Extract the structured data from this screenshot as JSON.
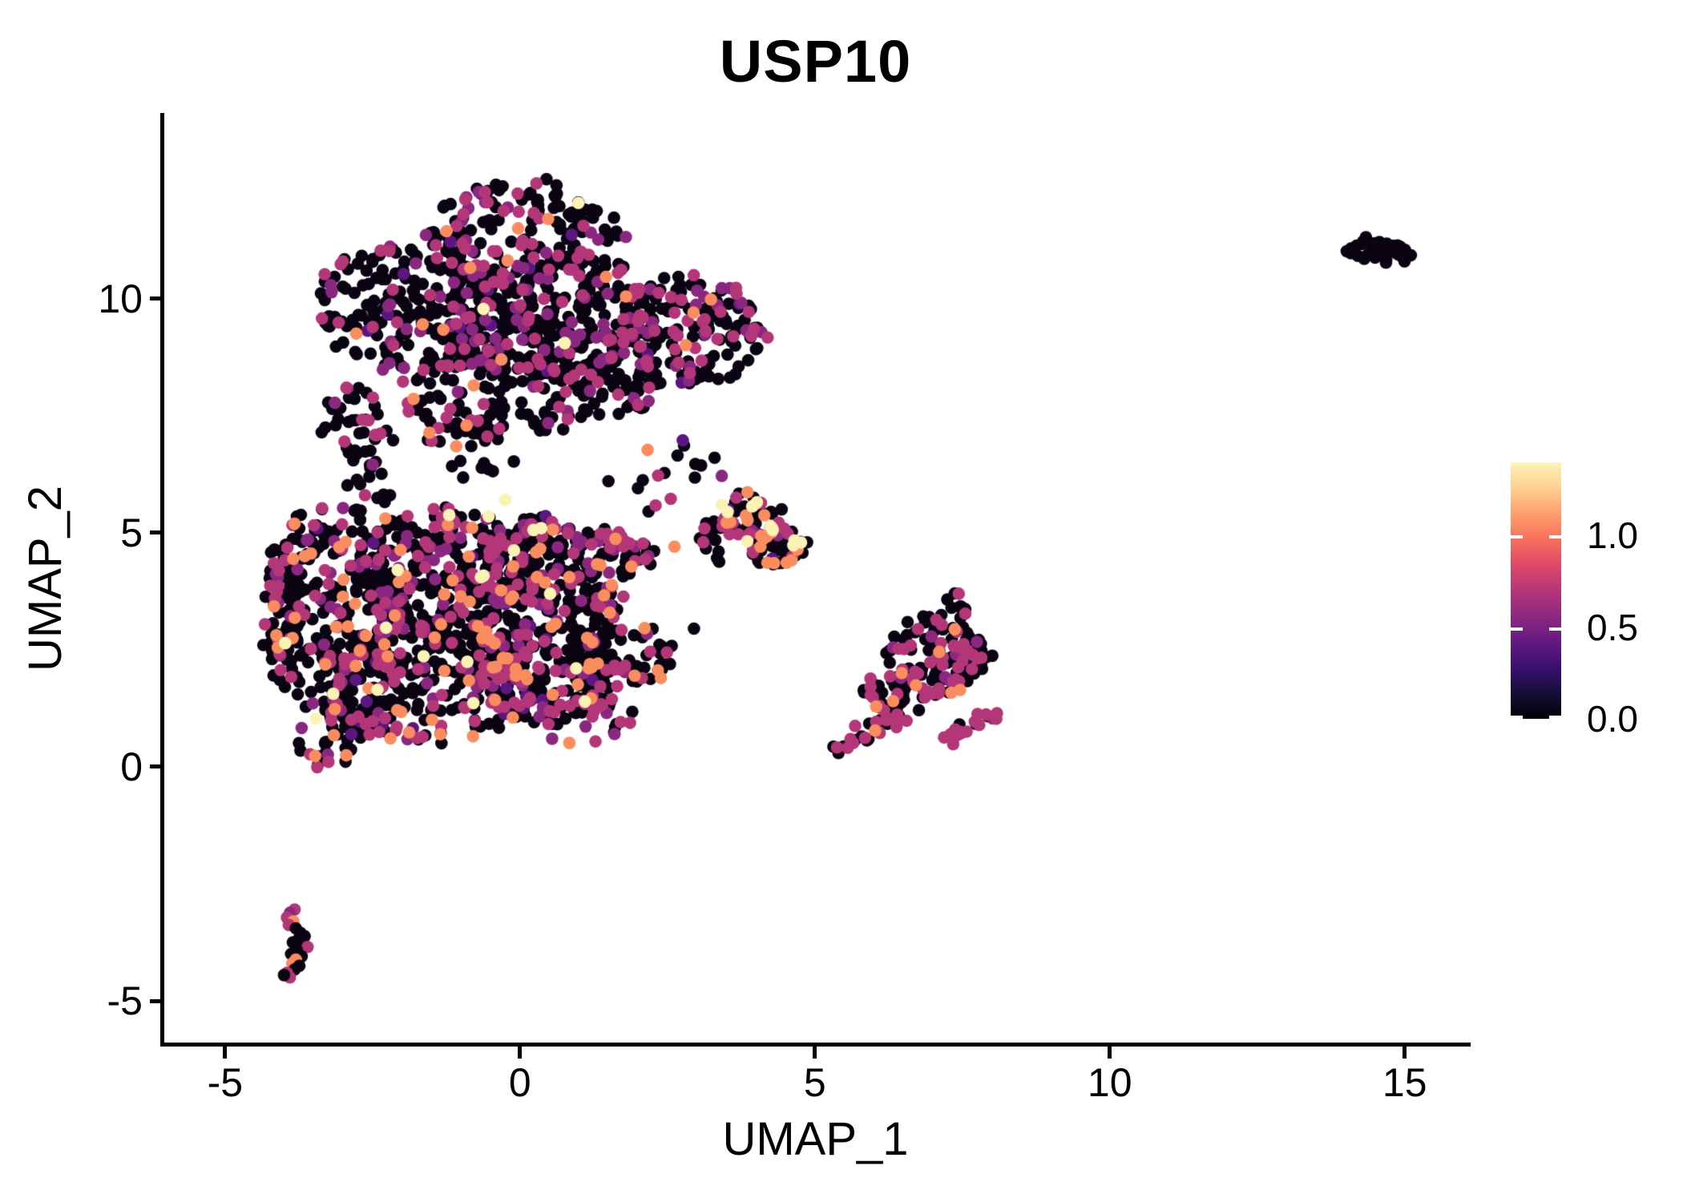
{
  "title": "USP10",
  "chart_data": {
    "type": "scatter",
    "title": "USP10",
    "xlabel": "UMAP_1",
    "ylabel": "UMAP_2",
    "xlim": [
      -6.03,
      16.05
    ],
    "ylim": [
      -5.89,
      13.93
    ],
    "grid": false,
    "point_radius_px": 7.8,
    "seed": 20,
    "axes": {
      "x": {
        "ticks": [
          {
            "value": -5,
            "label": "-5"
          },
          {
            "value": 0,
            "label": "0"
          },
          {
            "value": 5,
            "label": "5"
          },
          {
            "value": 10,
            "label": "10"
          },
          {
            "value": 15,
            "label": "15"
          }
        ]
      },
      "y": {
        "ticks": [
          {
            "value": 10,
            "label": "10"
          },
          {
            "value": 5,
            "label": "5"
          },
          {
            "value": 0,
            "label": "0"
          },
          {
            "value": -5,
            "label": "-5"
          }
        ]
      }
    },
    "legend": {
      "position": "right",
      "max": 1.4,
      "ticks": [
        {
          "value": 1.0,
          "label": "1.0"
        },
        {
          "value": 0.5,
          "label": "0.5"
        },
        {
          "value": 0.0,
          "label": "0.0"
        }
      ],
      "gradient": [
        {
          "pos": 0.0,
          "color": "#000004"
        },
        {
          "pos": 0.1,
          "color": "#140E36"
        },
        {
          "pos": 0.2,
          "color": "#3B0F70"
        },
        {
          "pos": 0.3,
          "color": "#641A80"
        },
        {
          "pos": 0.4,
          "color": "#8C2981"
        },
        {
          "pos": 0.5,
          "color": "#B63679"
        },
        {
          "pos": 0.6,
          "color": "#DE4968"
        },
        {
          "pos": 0.7,
          "color": "#F7705C"
        },
        {
          "pos": 0.8,
          "color": "#FE9F6D"
        },
        {
          "pos": 0.9,
          "color": "#FECF92"
        },
        {
          "pos": 1.0,
          "color": "#FCF4B6"
        }
      ]
    },
    "palette": {
      "black": "#0A0413",
      "purple": "#5C167F",
      "dmag": "#8A2880",
      "mag": "#B33778",
      "orange": "#F98D5F",
      "cream": "#FBF2B4"
    },
    "color_mixes": {
      "A": {
        "black": 0.72,
        "mag": 0.155,
        "dmag": 0.085,
        "purple": 0.015,
        "orange": 0.02,
        "cream": 0.005
      },
      "B": {
        "black": 0.655,
        "mag": 0.165,
        "dmag": 0.085,
        "purple": 0.02,
        "orange": 0.065,
        "cream": 0.01
      },
      "S1": {
        "black": 0.42,
        "mag": 0.33,
        "dmag": 0.1,
        "orange": 0.15
      },
      "C": {
        "black": 0.52,
        "mag": 0.13,
        "dmag": 0.06,
        "purple": 0.02,
        "orange": 0.2,
        "cream": 0.07
      },
      "C2": {
        "black": 0.6,
        "mag": 0.2,
        "dmag": 0.1,
        "orange": 0.1
      },
      "D": {
        "black": 0.66,
        "mag": 0.27,
        "dmag": 0.05,
        "orange": 0.02
      },
      "D2": {
        "black": 0.7,
        "mag": 0.3
      },
      "D3": {
        "black": 0.5,
        "mag": 0.38,
        "dmag": 0.03,
        "orange": 0.09
      },
      "D4": {
        "black": 0.2,
        "mag": 0.7,
        "dmag": 0.1
      },
      "F": {
        "black": 1.0
      }
    },
    "clusters": [
      {
        "id": "top-a1",
        "type": "ellipse",
        "cx": 0.1,
        "cy": 11.35,
        "rx": 1.7,
        "ry": 1.05,
        "rot": -8,
        "n": 150,
        "mix": "A"
      },
      {
        "id": "top-a2",
        "type": "ellipse",
        "cx": -1.7,
        "cy": 9.9,
        "rx": 1.75,
        "ry": 1.5,
        "rot": 10,
        "n": 230,
        "mix": "A"
      },
      {
        "id": "top-a3",
        "type": "ellipse",
        "cx": 0.6,
        "cy": 9.6,
        "rx": 1.9,
        "ry": 1.45,
        "rot": 0,
        "n": 300,
        "mix": "A"
      },
      {
        "id": "top-a4",
        "type": "ellipse",
        "cx": 2.9,
        "cy": 9.35,
        "rx": 1.25,
        "ry": 1.15,
        "rot": -20,
        "n": 170,
        "mix": "A"
      },
      {
        "id": "top-a5",
        "type": "ellipse",
        "cx": 0.2,
        "cy": 8.1,
        "rx": 2.3,
        "ry": 0.95,
        "rot": 3,
        "n": 180,
        "mix": "A"
      },
      {
        "id": "top-a6-bridge",
        "type": "ellipse",
        "cx": -2.7,
        "cy": 6.9,
        "rx": 0.55,
        "ry": 1.35,
        "rot": 12,
        "n": 55,
        "mix": "A"
      },
      {
        "id": "top-a7-spur",
        "type": "ellipse",
        "cx": -0.85,
        "cy": 6.8,
        "rx": 0.85,
        "ry": 0.6,
        "rot": 0,
        "n": 28,
        "mix": "A"
      },
      {
        "id": "top-a8-sparse",
        "type": "ellipse",
        "cx": 2.5,
        "cy": 6.3,
        "rx": 1.0,
        "ry": 0.78,
        "rot": 0,
        "n": 13,
        "mix": "A"
      },
      {
        "id": "mid-b1",
        "type": "ellipse",
        "cx": -3.1,
        "cy": 3.3,
        "rx": 1.15,
        "ry": 2.5,
        "rot": 5,
        "n": 270,
        "mix": "B"
      },
      {
        "id": "mid-b2",
        "type": "ellipse",
        "cx": -1.3,
        "cy": 4.0,
        "rx": 1.6,
        "ry": 1.6,
        "rot": 0,
        "n": 320,
        "mix": "B"
      },
      {
        "id": "mid-b3",
        "type": "ellipse",
        "cx": 0.5,
        "cy": 4.0,
        "rx": 1.4,
        "ry": 1.2,
        "rot": -10,
        "n": 230,
        "mix": "B"
      },
      {
        "id": "mid-b4",
        "type": "ellipse",
        "cx": -1.4,
        "cy": 1.8,
        "rx": 1.8,
        "ry": 1.25,
        "rot": 8,
        "n": 260,
        "mix": "B"
      },
      {
        "id": "mid-b5",
        "type": "ellipse",
        "cx": 0.5,
        "cy": 2.0,
        "rx": 1.3,
        "ry": 1.05,
        "rot": 0,
        "n": 190,
        "mix": "B"
      },
      {
        "id": "mid-b6-wedge",
        "type": "ellipse",
        "cx": 1.8,
        "cy": 2.45,
        "rx": 0.85,
        "ry": 0.6,
        "rot": -25,
        "n": 55,
        "mix": "B"
      },
      {
        "id": "mid-b7-tip",
        "type": "ellipse",
        "cx": -3.2,
        "cy": 0.6,
        "rx": 0.6,
        "ry": 0.65,
        "rot": 0,
        "n": 40,
        "mix": "B"
      },
      {
        "id": "mid-b8-edge",
        "type": "ellipse",
        "cx": -4.0,
        "cy": 3.1,
        "rx": 0.3,
        "ry": 1.5,
        "rot": 0,
        "n": 45,
        "mix": "B"
      },
      {
        "id": "mid-b9-streak",
        "type": "streak",
        "x1": 1.35,
        "y1": 4.95,
        "x2": 2.15,
        "y2": 4.42,
        "spread": 0.12,
        "n": 30,
        "mix": "S1"
      },
      {
        "id": "mid-b10",
        "type": "ellipse",
        "cx": 1.15,
        "cy": 0.95,
        "rx": 0.75,
        "ry": 0.5,
        "rot": 10,
        "n": 26,
        "mix": "B"
      },
      {
        "id": "mid-b11",
        "type": "ellipse",
        "cx": 0.35,
        "cy": 5.0,
        "rx": 0.5,
        "ry": 0.35,
        "rot": 0,
        "n": 30,
        "mix": "B"
      },
      {
        "id": "small-c1",
        "type": "ellipse",
        "cx": 3.9,
        "cy": 5.35,
        "rx": 0.5,
        "ry": 0.5,
        "rot": 0,
        "n": 48,
        "mix": "C"
      },
      {
        "id": "small-c2",
        "type": "ellipse",
        "cx": 4.35,
        "cy": 4.7,
        "rx": 0.55,
        "ry": 0.42,
        "rot": -15,
        "n": 52,
        "mix": "C"
      },
      {
        "id": "small-c3-arm",
        "type": "ellipse",
        "cx": 3.3,
        "cy": 4.9,
        "rx": 0.35,
        "ry": 0.5,
        "rot": 15,
        "n": 16,
        "mix": "C2"
      },
      {
        "id": "right-d1",
        "type": "ellipse",
        "cx": 7.05,
        "cy": 2.35,
        "rx": 0.95,
        "ry": 0.85,
        "rot": -20,
        "n": 120,
        "mix": "D"
      },
      {
        "id": "right-d2-top",
        "type": "ellipse",
        "cx": 7.42,
        "cy": 3.45,
        "rx": 0.24,
        "ry": 0.33,
        "rot": 0,
        "n": 9,
        "mix": "D2"
      },
      {
        "id": "right-d5",
        "type": "ellipse",
        "cx": 6.35,
        "cy": 1.6,
        "rx": 0.55,
        "ry": 0.5,
        "rot": 0,
        "n": 40,
        "mix": "D"
      },
      {
        "id": "right-d3-tail",
        "type": "streak",
        "x1": 5.42,
        "y1": 0.32,
        "x2": 6.45,
        "y2": 1.25,
        "spread": 0.13,
        "n": 34,
        "mix": "D3"
      },
      {
        "id": "right-d4-streak",
        "type": "streak",
        "x1": 7.22,
        "y1": 0.62,
        "x2": 8.02,
        "y2": 1.08,
        "spread": 0.1,
        "n": 20,
        "mix": "D4"
      },
      {
        "id": "far-right-f",
        "type": "ellipse",
        "cx": 14.52,
        "cy": 11.06,
        "rx": 0.54,
        "ry": 0.22,
        "rot": -6,
        "n": 40,
        "mix": "F"
      }
    ],
    "explicit_points": [
      {
        "x": -3.82,
        "y": -3.05,
        "c": "mag"
      },
      {
        "x": -3.9,
        "y": -3.12,
        "c": "dmag"
      },
      {
        "x": -3.95,
        "y": -3.22,
        "c": "mag"
      },
      {
        "x": -3.84,
        "y": -3.3,
        "c": "orange"
      },
      {
        "x": -3.92,
        "y": -3.38,
        "c": "mag"
      },
      {
        "x": -3.8,
        "y": -3.45,
        "c": "black"
      },
      {
        "x": -3.72,
        "y": -3.55,
        "c": "black"
      },
      {
        "x": -3.65,
        "y": -3.62,
        "c": "black"
      },
      {
        "x": -3.75,
        "y": -3.68,
        "c": "black"
      },
      {
        "x": -3.85,
        "y": -3.75,
        "c": "black"
      },
      {
        "x": -3.7,
        "y": -3.8,
        "c": "black"
      },
      {
        "x": -3.6,
        "y": -3.85,
        "c": "mag"
      },
      {
        "x": -3.78,
        "y": -3.92,
        "c": "black"
      },
      {
        "x": -3.88,
        "y": -4.0,
        "c": "black"
      },
      {
        "x": -3.7,
        "y": -4.05,
        "c": "black"
      },
      {
        "x": -3.8,
        "y": -4.12,
        "c": "orange"
      },
      {
        "x": -3.86,
        "y": -4.2,
        "c": "orange"
      },
      {
        "x": -3.74,
        "y": -4.25,
        "c": "black"
      },
      {
        "x": -3.82,
        "y": -4.33,
        "c": "black"
      },
      {
        "x": -3.95,
        "y": -4.4,
        "c": "mag"
      },
      {
        "x": -3.9,
        "y": -4.5,
        "c": "mag"
      },
      {
        "x": -4.0,
        "y": -4.45,
        "c": "black"
      },
      {
        "x": 2.62,
        "y": 4.7,
        "c": "orange"
      },
      {
        "x": -0.25,
        "y": 5.7,
        "c": "cream"
      },
      {
        "x": -2.27,
        "y": 2.97,
        "c": "cream"
      },
      {
        "x": -3.46,
        "y": 1.03,
        "c": "cream"
      },
      {
        "x": 0.76,
        "y": 9.05,
        "c": "cream"
      },
      {
        "x": 2.0,
        "y": 5.95,
        "c": "black"
      },
      {
        "x": 2.3,
        "y": 5.58,
        "c": "mag"
      },
      {
        "x": 1.5,
        "y": 6.1,
        "c": "black"
      },
      {
        "x": 2.95,
        "y": 2.95,
        "c": "black"
      },
      {
        "x": 0.45,
        "y": 12.55,
        "c": "black"
      },
      {
        "x": 0.62,
        "y": 12.42,
        "c": "black"
      },
      {
        "x": 0.28,
        "y": 12.46,
        "c": "mag"
      },
      {
        "x": -4.35,
        "y": 2.6,
        "c": "black"
      },
      {
        "x": 3.3,
        "y": 6.6,
        "c": "black"
      }
    ]
  }
}
